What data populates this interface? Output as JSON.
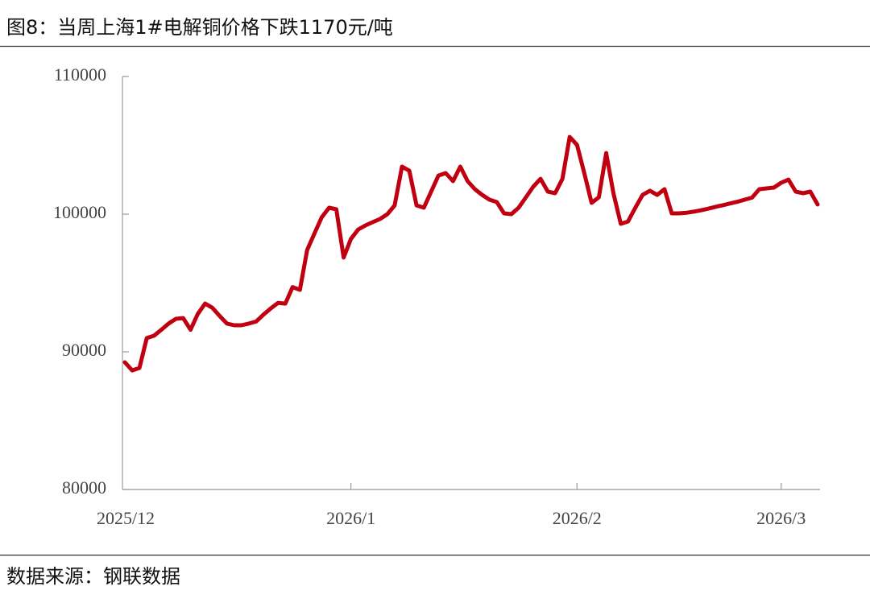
{
  "chart_data": {
    "type": "line",
    "title": "图8：当周上海1#电解铜价格下跌1170元/吨",
    "source": "数据来源：钢联数据",
    "categories": [
      "2025/12",
      null,
      null,
      null,
      null,
      null,
      null,
      null,
      null,
      null,
      null,
      null,
      null,
      null,
      null,
      null,
      null,
      null,
      null,
      null,
      null,
      null,
      null,
      null,
      null,
      null,
      null,
      null,
      null,
      null,
      null,
      "2026/1",
      null,
      null,
      null,
      null,
      null,
      null,
      null,
      null,
      null,
      null,
      null,
      null,
      null,
      null,
      null,
      null,
      null,
      null,
      null,
      null,
      null,
      null,
      null,
      null,
      null,
      null,
      null,
      null,
      null,
      null,
      "2026/2",
      null,
      null,
      null,
      null,
      null,
      null,
      null,
      null,
      null,
      null,
      null,
      null,
      null,
      null,
      null,
      null,
      null,
      null,
      null,
      null,
      null,
      null,
      null,
      null,
      null,
      null,
      null,
      "2026/3",
      null,
      null,
      null,
      null,
      null
    ],
    "series": [
      {
        "color": "#c00010",
        "values": [
          89240,
          88650,
          88830,
          91000,
          91170,
          91600,
          92050,
          92400,
          92450,
          91600,
          92750,
          93500,
          93200,
          92600,
          92050,
          91930,
          91930,
          92050,
          92200,
          92700,
          93150,
          93550,
          93500,
          94700,
          94500,
          97400,
          98600,
          99770,
          100470,
          100350,
          96850,
          98200,
          98890,
          99180,
          99420,
          99650,
          100000,
          100640,
          103450,
          103160,
          100640,
          100470,
          101640,
          102800,
          102980,
          102400,
          103450,
          102400,
          101810,
          101400,
          101050,
          100880,
          100060,
          100000,
          100470,
          101230,
          101990,
          102570,
          101640,
          101520,
          102570,
          105610,
          105030,
          102980,
          100820,
          101230,
          104440,
          101520,
          99300,
          99470,
          100470,
          101400,
          101700,
          101400,
          101810,
          100060,
          100060,
          100100,
          100180,
          100280,
          100400,
          100530,
          100650,
          100780,
          100900,
          101050,
          101200,
          101810,
          101870,
          101930,
          102280,
          102510,
          101640,
          101520,
          101640,
          100700
        ]
      }
    ],
    "ylim": [
      80000,
      110000
    ],
    "yticks": [
      80000,
      90000,
      100000,
      110000
    ]
  }
}
